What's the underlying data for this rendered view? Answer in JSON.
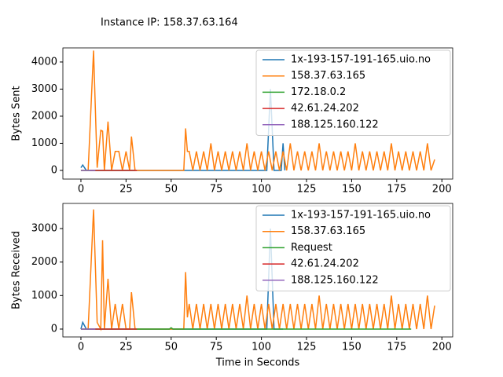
{
  "chart_data": [
    {
      "type": "line",
      "title": "Instance IP: 158.37.63.164",
      "ylabel": "Bytes Sent",
      "xlim": [
        -10,
        206
      ],
      "ylim": [
        -320,
        4520
      ],
      "xticks": [
        0,
        25,
        50,
        75,
        100,
        125,
        150,
        175,
        200
      ],
      "yticks": [
        0,
        1000,
        2000,
        3000,
        4000
      ],
      "legend": "upper right",
      "series": [
        {
          "name": "1x-193-157-191-165.uio.no",
          "color": "#1f77b4",
          "x": [
            0,
            1,
            3,
            103,
            105,
            107,
            111,
            112,
            113
          ],
          "values": [
            100,
            200,
            0,
            0,
            3000,
            0,
            0,
            1000,
            0
          ]
        },
        {
          "name": "158.37.63.165",
          "color": "#ff7f0e",
          "x": [
            0,
            4,
            7,
            9,
            11,
            12,
            13,
            15,
            17,
            19,
            21,
            23,
            25,
            27,
            28,
            30,
            57,
            58,
            59,
            60,
            62,
            64,
            66,
            68,
            70,
            72,
            74,
            76,
            78,
            80,
            82,
            84,
            86,
            88,
            90,
            92,
            94,
            96,
            98,
            100,
            102,
            104,
            106,
            108,
            110,
            112,
            114,
            116,
            118,
            120,
            122,
            124,
            126,
            128,
            130,
            132,
            134,
            136,
            138,
            140,
            142,
            144,
            146,
            148,
            150,
            152,
            154,
            156,
            158,
            160,
            162,
            164,
            166,
            168,
            170,
            172,
            174,
            176,
            178,
            180,
            182,
            184,
            186,
            188,
            190,
            192,
            194,
            196
          ],
          "values": [
            0,
            0,
            4420,
            100,
            1480,
            1450,
            0,
            1800,
            0,
            700,
            700,
            0,
            700,
            0,
            1250,
            0,
            0,
            1550,
            700,
            700,
            0,
            700,
            0,
            700,
            0,
            1000,
            0,
            700,
            0,
            700,
            0,
            700,
            0,
            700,
            0,
            1000,
            0,
            700,
            0,
            700,
            0,
            700,
            0,
            700,
            0,
            700,
            0,
            1000,
            0,
            700,
            0,
            700,
            0,
            700,
            0,
            1000,
            0,
            700,
            0,
            700,
            0,
            700,
            0,
            700,
            0,
            1000,
            0,
            700,
            0,
            700,
            0,
            700,
            0,
            700,
            0,
            1000,
            0,
            700,
            0,
            700,
            0,
            700,
            0,
            700,
            0,
            1000,
            0,
            400
          ]
        },
        {
          "name": "172.18.0.2",
          "color": "#2ca02c",
          "x": [
            0,
            30
          ],
          "values": [
            0,
            0
          ]
        },
        {
          "name": "42.61.24.202",
          "color": "#d62728",
          "x": [
            5,
            31
          ],
          "values": [
            0,
            0
          ]
        },
        {
          "name": "188.125.160.122",
          "color": "#9467bd",
          "x": [
            0,
            8
          ],
          "values": [
            0,
            0
          ]
        }
      ]
    },
    {
      "type": "line",
      "ylabel": "Bytes Received",
      "xlabel": "Time in Seconds",
      "xlim": [
        -10,
        206
      ],
      "ylim": [
        -235,
        3750
      ],
      "xticks": [
        0,
        25,
        50,
        75,
        100,
        125,
        150,
        175,
        200
      ],
      "yticks": [
        0,
        1000,
        2000,
        3000
      ],
      "legend": "upper right",
      "series": [
        {
          "name": "1x-193-157-191-165.uio.no",
          "color": "#1f77b4",
          "x": [
            0,
            1,
            3,
            103,
            105,
            107,
            112
          ],
          "values": [
            0,
            200,
            0,
            0,
            3000,
            0,
            0
          ]
        },
        {
          "name": "158.37.63.165",
          "color": "#ff7f0e",
          "x": [
            0,
            4,
            7,
            9,
            11,
            12,
            13,
            15,
            17,
            19,
            21,
            23,
            25,
            27,
            28,
            30,
            57,
            58,
            59,
            60,
            62,
            64,
            66,
            68,
            70,
            72,
            74,
            76,
            78,
            80,
            82,
            84,
            86,
            88,
            90,
            92,
            94,
            96,
            98,
            100,
            102,
            104,
            106,
            108,
            110,
            112,
            114,
            116,
            118,
            120,
            122,
            124,
            126,
            128,
            130,
            132,
            134,
            136,
            138,
            140,
            142,
            144,
            146,
            148,
            150,
            152,
            154,
            156,
            158,
            160,
            162,
            164,
            166,
            168,
            170,
            172,
            174,
            176,
            178,
            180,
            182,
            184,
            186,
            188,
            190,
            192,
            194,
            196
          ],
          "values": [
            0,
            0,
            3570,
            200,
            0,
            2650,
            0,
            1500,
            0,
            750,
            0,
            750,
            0,
            0,
            1100,
            0,
            0,
            1700,
            350,
            750,
            0,
            750,
            0,
            750,
            0,
            750,
            0,
            750,
            0,
            750,
            0,
            750,
            0,
            750,
            0,
            1000,
            0,
            750,
            0,
            750,
            0,
            750,
            0,
            750,
            0,
            750,
            0,
            750,
            0,
            750,
            0,
            750,
            0,
            750,
            0,
            1000,
            0,
            750,
            0,
            750,
            0,
            750,
            0,
            750,
            0,
            750,
            0,
            750,
            0,
            750,
            0,
            750,
            0,
            750,
            0,
            1000,
            0,
            750,
            0,
            750,
            0,
            750,
            0,
            750,
            0,
            1000,
            0,
            700
          ]
        },
        {
          "name": "Request",
          "color": "#2ca02c",
          "x": [
            0,
            49,
            50,
            51,
            183
          ],
          "values": [
            0,
            0,
            40,
            0,
            0
          ]
        },
        {
          "name": "42.61.24.202",
          "color": "#d62728",
          "x": [
            5,
            31
          ],
          "values": [
            0,
            0
          ]
        },
        {
          "name": "188.125.160.122",
          "color": "#9467bd",
          "x": [
            0,
            8
          ],
          "values": [
            0,
            0
          ]
        }
      ]
    }
  ]
}
